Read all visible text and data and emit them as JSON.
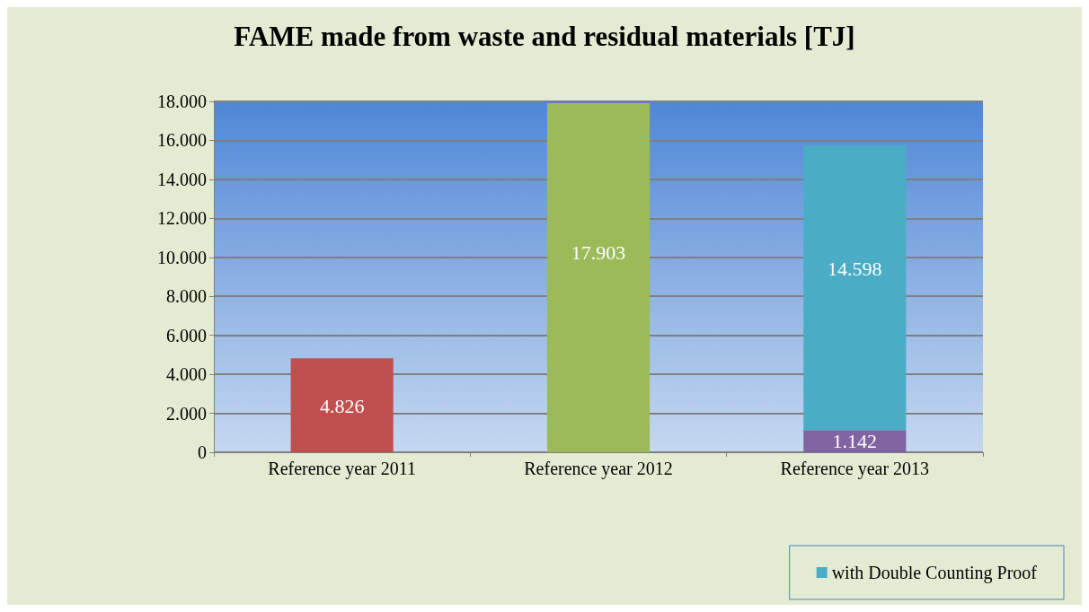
{
  "chart_data": {
    "type": "bar",
    "title": "FAME made from waste and residual materials [TJ]",
    "categories": [
      "Reference year 2011",
      "Reference year 2012",
      "Reference year 2013"
    ],
    "stacked": true,
    "series": [
      {
        "colors": [
          "#c0504d",
          "#9bbb59",
          "#8064a2"
        ],
        "values": [
          4826,
          17903,
          1142
        ],
        "value_labels": [
          "4.826",
          "17.903",
          "1.142"
        ]
      },
      {
        "name": "with Double Counting Proof",
        "color": "#4bacc6",
        "values": [
          null,
          null,
          14598
        ],
        "value_labels": [
          null,
          null,
          "14.598"
        ]
      }
    ],
    "ylim": [
      0,
      18000
    ],
    "yticks": [
      {
        "value": 0,
        "label": "0"
      },
      {
        "value": 2000,
        "label": "2.000"
      },
      {
        "value": 4000,
        "label": "4.000"
      },
      {
        "value": 6000,
        "label": "6.000"
      },
      {
        "value": 8000,
        "label": "8.000"
      },
      {
        "value": 10000,
        "label": "10.000"
      },
      {
        "value": 12000,
        "label": "12.000"
      },
      {
        "value": 14000,
        "label": "14.000"
      },
      {
        "value": 16000,
        "label": "16.000"
      },
      {
        "value": 18000,
        "label": "18.000"
      }
    ],
    "grid": "y",
    "legend": "bottom right"
  }
}
